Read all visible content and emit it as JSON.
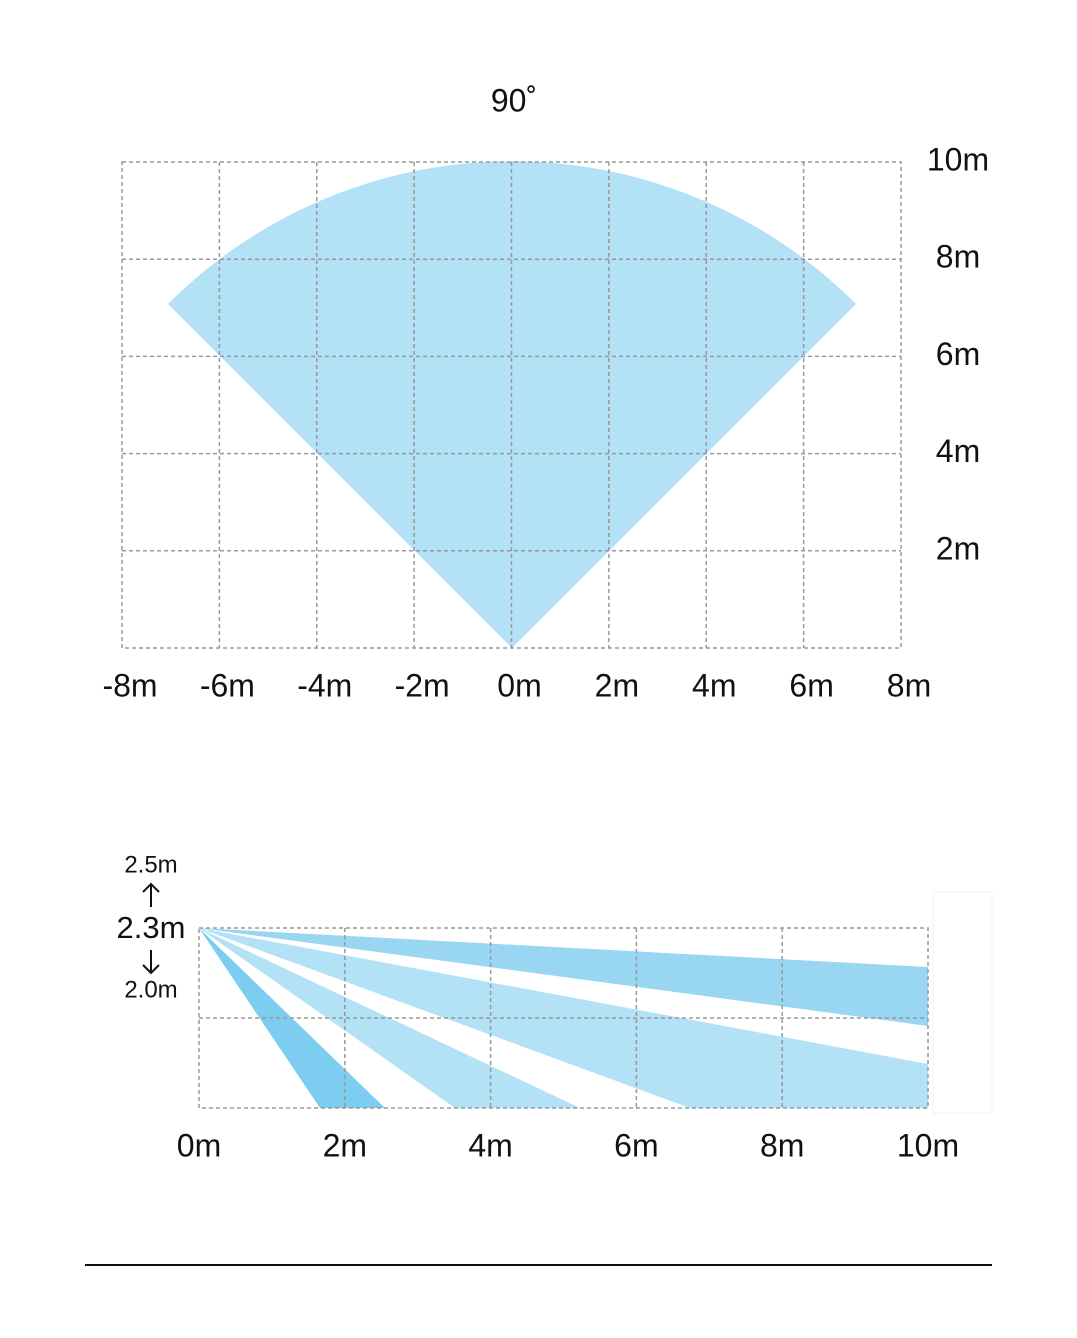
{
  "top_view": {
    "angle_label": "90˚",
    "x_labels": [
      "-8m",
      "-6m",
      "-4m",
      "-2m",
      "0m",
      "2m",
      "4m",
      "6m",
      "8m"
    ],
    "y_labels": [
      "10m",
      "8m",
      "6m",
      "4m",
      "2m"
    ]
  },
  "side_view": {
    "height_labels": [
      "2.5m",
      "2.3m",
      "2.0m"
    ],
    "x_labels": [
      "0m",
      "2m",
      "4m",
      "6m",
      "8m",
      "10m"
    ]
  }
}
